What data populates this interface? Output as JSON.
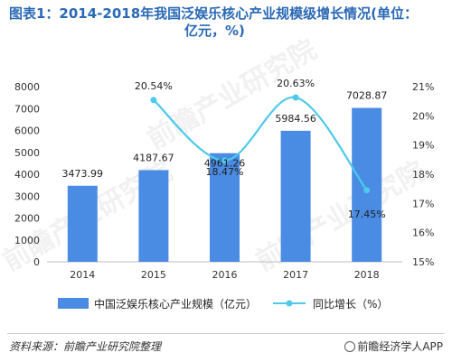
{
  "title_line1": "图表1：2014-2018年我国泛娱乐核心产业规模级增长情况(单位：",
  "title_line2": "亿元，%)",
  "source": "资料来源：前瞻产业研究院整理",
  "brand": "前瞻经济学人APP",
  "watermark": "前瞻产业研究院",
  "chart_data": {
    "type": "bar",
    "categories": [
      "2014",
      "2015",
      "2016",
      "2017",
      "2018"
    ],
    "series": [
      {
        "name": "中国泛娱乐核心产业规模（亿元）",
        "kind": "bar",
        "axis": "left",
        "values": [
          3473.99,
          4187.67,
          4961.26,
          5984.56,
          7028.87
        ],
        "labels": [
          "3473.99",
          "4187.67",
          "4961.26",
          "5984.56",
          "7028.87"
        ],
        "color": "#4a8be3"
      },
      {
        "name": "同比增长（%）",
        "kind": "line",
        "axis": "right",
        "values": [
          null,
          20.54,
          18.47,
          20.63,
          17.45
        ],
        "labels": [
          "",
          "20.54%",
          "18.47%",
          "20.63%",
          "17.45%"
        ],
        "color": "#4dc9ea"
      }
    ],
    "y_left": {
      "min": 0,
      "max": 8000,
      "step": 1000,
      "ticks": [
        "0",
        "1000",
        "2000",
        "3000",
        "4000",
        "5000",
        "6000",
        "7000",
        "8000"
      ]
    },
    "y_right": {
      "min": 15,
      "max": 21,
      "step": 1,
      "ticks": [
        "15%",
        "16%",
        "17%",
        "18%",
        "19%",
        "20%",
        "21%"
      ]
    },
    "legend_position": "bottom",
    "grid": false
  }
}
